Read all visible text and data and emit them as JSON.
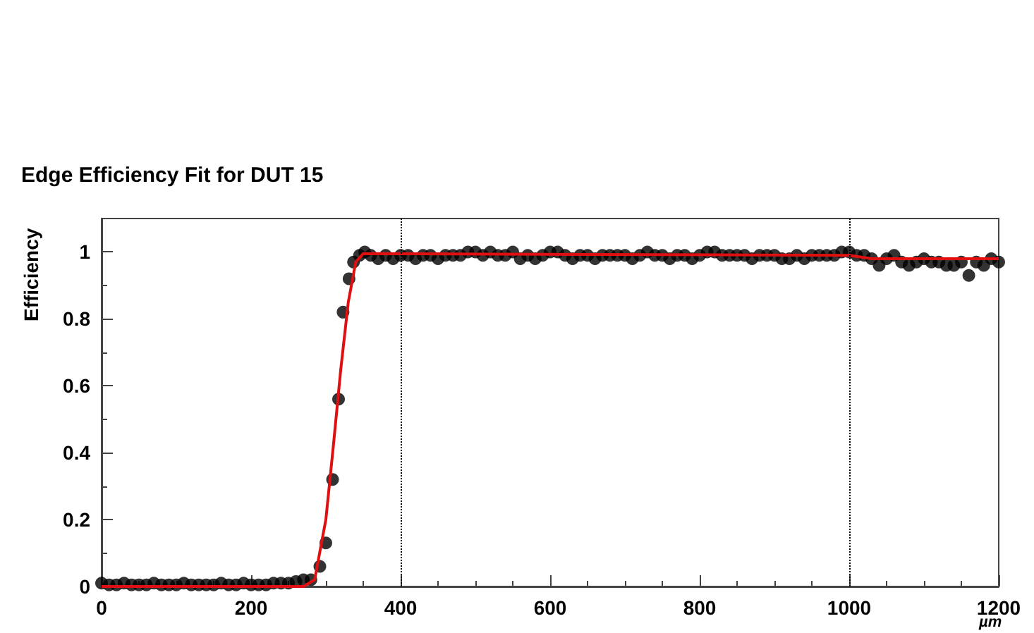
{
  "chart_data": {
    "type": "scatter",
    "title": "Edge Efficiency Fit for DUT 15",
    "xlabel": "µm",
    "ylabel": "Efficiency",
    "xlim": [
      0,
      1200
    ],
    "ylim": [
      0,
      1.1
    ],
    "xticks": [
      0,
      200,
      400,
      600,
      800,
      1000,
      1200
    ],
    "yticks": [
      0,
      0.2,
      0.4,
      0.6,
      0.8,
      1
    ],
    "grid": false,
    "marker": "circle",
    "ref_lines": [
      {
        "axis": "x",
        "value": 400,
        "line_style": "dotted",
        "color": "#000000"
      },
      {
        "axis": "x",
        "value": 1000,
        "line_style": "dotted",
        "color": "#000000"
      }
    ],
    "series": [
      {
        "color": "#000000",
        "x": [
          0,
          10,
          20,
          30,
          40,
          50,
          60,
          70,
          80,
          90,
          100,
          110,
          120,
          130,
          140,
          150,
          160,
          170,
          180,
          190,
          200,
          210,
          220,
          230,
          240,
          250,
          260,
          270,
          280,
          292,
          300,
          309,
          317,
          323,
          331,
          337,
          345,
          352,
          360,
          370,
          380,
          390,
          400,
          410,
          420,
          430,
          440,
          450,
          460,
          470,
          480,
          490,
          500,
          510,
          520,
          530,
          540,
          550,
          560,
          570,
          580,
          590,
          600,
          610,
          620,
          630,
          640,
          650,
          660,
          670,
          680,
          690,
          700,
          710,
          720,
          730,
          740,
          750,
          760,
          770,
          780,
          790,
          800,
          810,
          820,
          830,
          840,
          850,
          860,
          870,
          880,
          890,
          900,
          910,
          920,
          930,
          940,
          950,
          960,
          970,
          980,
          990,
          1000,
          1010,
          1020,
          1030,
          1040,
          1050,
          1060,
          1070,
          1080,
          1090,
          1100,
          1110,
          1120,
          1130,
          1140,
          1150,
          1160,
          1170,
          1180,
          1190,
          1200
        ],
        "values": [
          0.01,
          0.005,
          0.005,
          0.01,
          0.005,
          0.005,
          0.005,
          0.01,
          0.005,
          0.005,
          0.005,
          0.01,
          0.005,
          0.005,
          0.005,
          0.005,
          0.01,
          0.005,
          0.005,
          0.01,
          0.005,
          0.005,
          0.005,
          0.01,
          0.01,
          0.01,
          0.015,
          0.02,
          0.02,
          0.06,
          0.13,
          0.32,
          0.56,
          0.82,
          0.92,
          0.97,
          0.99,
          1.0,
          0.99,
          0.98,
          0.99,
          0.98,
          0.99,
          0.99,
          0.98,
          0.99,
          0.99,
          0.98,
          0.99,
          0.99,
          0.99,
          1.0,
          1.0,
          0.99,
          1.0,
          0.99,
          0.99,
          1.0,
          0.98,
          0.99,
          0.98,
          0.99,
          1.0,
          1.0,
          0.99,
          0.98,
          0.99,
          0.99,
          0.98,
          0.99,
          0.99,
          0.99,
          0.99,
          0.98,
          0.99,
          1.0,
          0.99,
          0.99,
          0.98,
          0.99,
          0.99,
          0.98,
          0.99,
          1.0,
          1.0,
          0.99,
          0.99,
          0.99,
          0.99,
          0.98,
          0.99,
          0.99,
          0.99,
          0.98,
          0.98,
          0.99,
          0.98,
          0.99,
          0.99,
          0.99,
          0.99,
          1.0,
          1.0,
          0.99,
          0.99,
          0.98,
          0.96,
          0.98,
          0.99,
          0.97,
          0.96,
          0.97,
          0.98,
          0.97,
          0.97,
          0.96,
          0.96,
          0.97,
          0.93,
          0.97,
          0.96,
          0.98,
          0.97
        ]
      },
      {
        "type": "line",
        "color": "#e01010",
        "marker": "none",
        "x": [
          0,
          270,
          285,
          300,
          310,
          320,
          330,
          340,
          350,
          1000,
          1030,
          1200
        ],
        "values": [
          0,
          0,
          0.02,
          0.2,
          0.42,
          0.65,
          0.85,
          0.97,
          0.995,
          0.99,
          0.98,
          0.98
        ]
      }
    ]
  }
}
